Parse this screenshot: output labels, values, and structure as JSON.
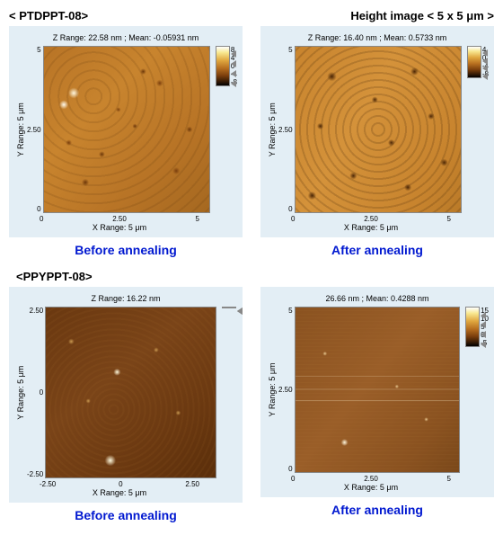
{
  "header": {
    "left": "< PTDPPT-08>",
    "right": "Height image < 5 x 5 μm >"
  },
  "section2_title": "<PPYPPT-08>",
  "panels": [
    {
      "zrange": "Z Range:  22.58 nm ; Mean: -0.05931 nm",
      "ylabel": "Y Range: 5 μm",
      "yticks": [
        "5",
        "2.50",
        "0"
      ],
      "xlabel": "X Range: 5 μm",
      "xticks": [
        "0",
        "2.50",
        "5"
      ],
      "cbar_ticks": [
        "8",
        "4",
        "0",
        "-4",
        "-8"
      ],
      "caption": "Before annealing",
      "img_class": "warm1"
    },
    {
      "zrange": "Z Range:  16.40 nm ; Mean: 0.5733 nm",
      "ylabel": "Y Range: 5 μm",
      "yticks": [
        "5",
        "2.50",
        "0"
      ],
      "xlabel": "X Range: 5 μm",
      "xticks": [
        "0",
        "2.50",
        "5"
      ],
      "cbar_ticks": [
        "4",
        "0",
        "-4",
        "-8"
      ],
      "caption": "After annealing",
      "img_class": "warm2"
    },
    {
      "zrange": "Z Range:  16.22 nm",
      "ylabel": "Y Range: 5 μm",
      "yticks": [
        "2.50",
        "0",
        "-2.50"
      ],
      "xlabel": "X Range: 5 μm",
      "xticks": [
        "-2.50",
        "0",
        "2.50"
      ],
      "cbar_ticks": [],
      "caption": "Before annealing",
      "img_class": "dark1"
    },
    {
      "zrange": "26.66 nm ; Mean: 0.4288 nm",
      "ylabel": "Y Range: 5 μm",
      "yticks": [
        "5",
        "2.50",
        "0"
      ],
      "xlabel": "X Range: 5 μm",
      "xticks": [
        "0",
        "2.50",
        "5"
      ],
      "cbar_ticks": [
        "15",
        "10",
        "5",
        "0",
        "-5"
      ],
      "caption": "After annealing",
      "img_class": "dark2"
    }
  ]
}
